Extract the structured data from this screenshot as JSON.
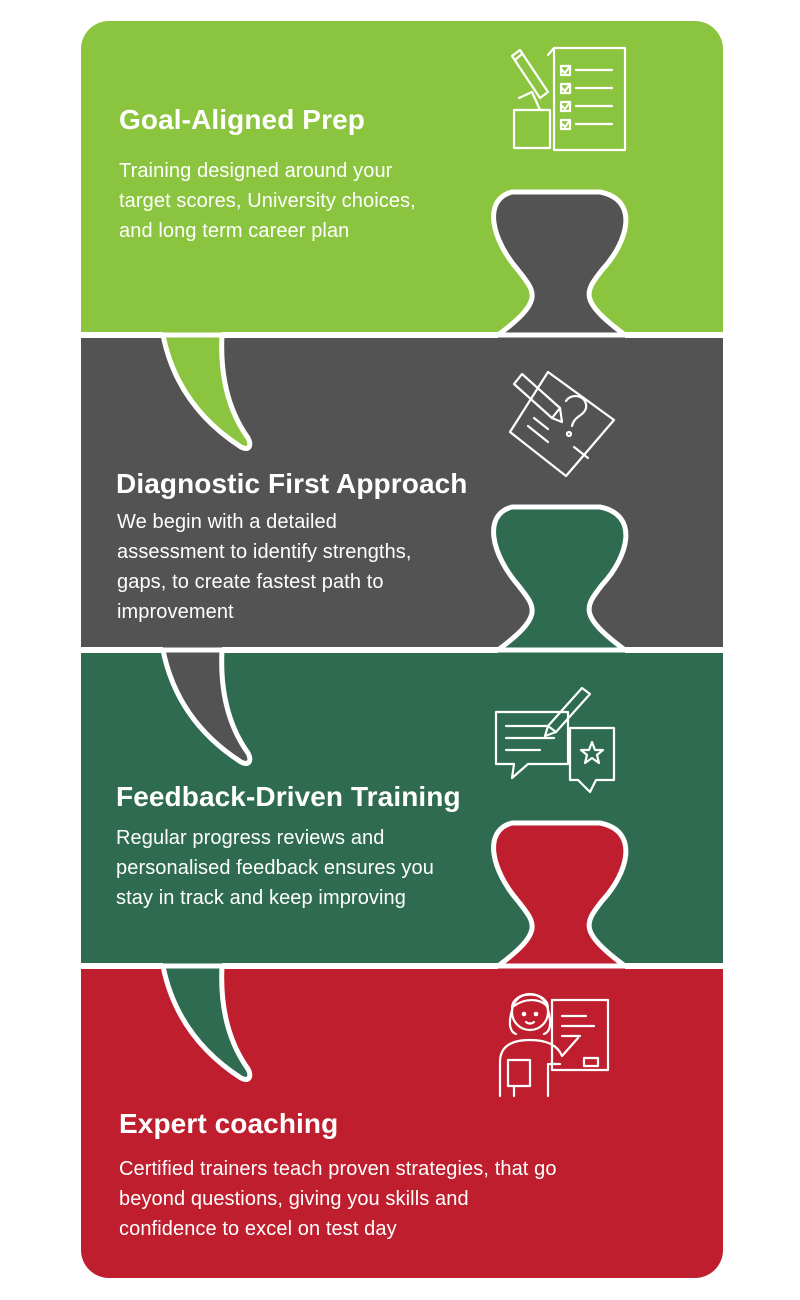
{
  "colors": {
    "green": "#8bc53f",
    "dark": "#535353",
    "teal": "#2e6b50",
    "red": "#be1e2d",
    "white": "#ffffff"
  },
  "steps": [
    {
      "title": "Goal-Aligned Prep",
      "lines": [
        "Training designed around your",
        "target scores, University choices,",
        "and long term career plan"
      ],
      "icon": "checklist-document-pencil-icon"
    },
    {
      "title": "Diagnostic First Approach",
      "lines": [
        "We begin with a detailed",
        "assessment to identify strengths,",
        "gaps, to create fastest path to",
        "improvement"
      ],
      "icon": "question-paper-pencil-icon"
    },
    {
      "title": "Feedback-Driven Training",
      "lines": [
        "Regular progress reviews and",
        "personalised feedback ensures you",
        "stay in track and keep improving"
      ],
      "icon": "feedback-chat-bubbles-icon"
    },
    {
      "title": "Expert coaching",
      "lines": [
        "Certified trainers teach proven strategies, that go",
        "beyond questions, giving you skills and",
        "confidence to excel on test day"
      ],
      "icon": "teacher-whiteboard-icon"
    }
  ]
}
